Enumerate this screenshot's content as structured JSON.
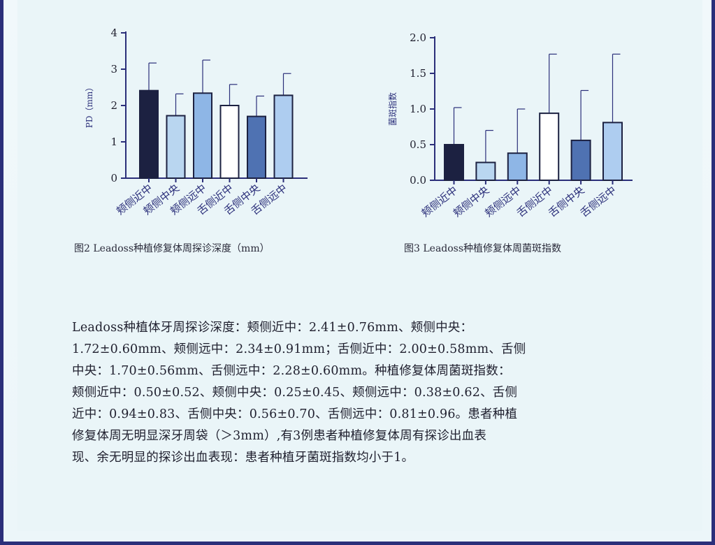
{
  "chart_data": [
    {
      "type": "bar",
      "categories": [
        "颊侧近中",
        "颊侧中央",
        "颊侧远中",
        "舌侧近中",
        "舌侧中央",
        "舌侧远中"
      ],
      "values": [
        2.41,
        1.72,
        2.34,
        2.0,
        1.7,
        2.28
      ],
      "errors": [
        0.76,
        0.6,
        0.91,
        0.58,
        0.56,
        0.6
      ],
      "bar_colors": [
        "#1c2141",
        "#b9d6f0",
        "#8eb6e6",
        "#ffffff",
        "#4f72b2",
        "#aecdf0"
      ],
      "ylabel": "PD（mm）",
      "yticks": [
        "0",
        "1",
        "2",
        "3",
        "4"
      ],
      "ylim": [
        0,
        4
      ],
      "caption": "图2 Leadoss种植修复体周探诊深度（mm）"
    },
    {
      "type": "bar",
      "categories": [
        "颊侧近中",
        "颊侧中央",
        "颊侧远中",
        "舌侧近中",
        "舌侧中央",
        "舌侧远中"
      ],
      "values": [
        0.5,
        0.25,
        0.38,
        0.94,
        0.56,
        0.81
      ],
      "errors": [
        0.52,
        0.45,
        0.62,
        0.83,
        0.7,
        0.96
      ],
      "bar_colors": [
        "#1c2141",
        "#b9d6f0",
        "#8eb6e6",
        "#ffffff",
        "#4f72b2",
        "#aecdf0"
      ],
      "ylabel": "菌斑指数",
      "yticks": [
        "0.0",
        "0.5",
        "1.0",
        "1.5",
        "2.0"
      ],
      "ylim": [
        0,
        2
      ],
      "caption": "图3 Leadoss种植修复体周菌斑指数"
    }
  ],
  "body": {
    "lines": [
      "Leadoss种植体牙周探诊深度：颊侧近中：2.41±0.76mm、颊侧中央：",
      "1.72±0.60mm、颊侧远中：2.34±0.91mm；舌侧近中：2.00±0.58mm、舌侧",
      "中央：1.70±0.56mm、舌侧远中：2.28±0.60mm。种植修复体周菌斑指数：",
      "颊侧近中：0.50±0.52、颊侧中央：0.25±0.45、颊侧远中：0.38±0.62、舌侧",
      "近中：0.94±0.83、舌侧中央：0.56±0.70、舌侧远中：0.81±0.96。患者种植",
      "修复体周无明显深牙周袋（＞3mm）,有3例患者种植修复体周有探诊出血表",
      "现、余无明显的探诊出血表现：患者种植牙菌斑指数均小于1。"
    ]
  }
}
